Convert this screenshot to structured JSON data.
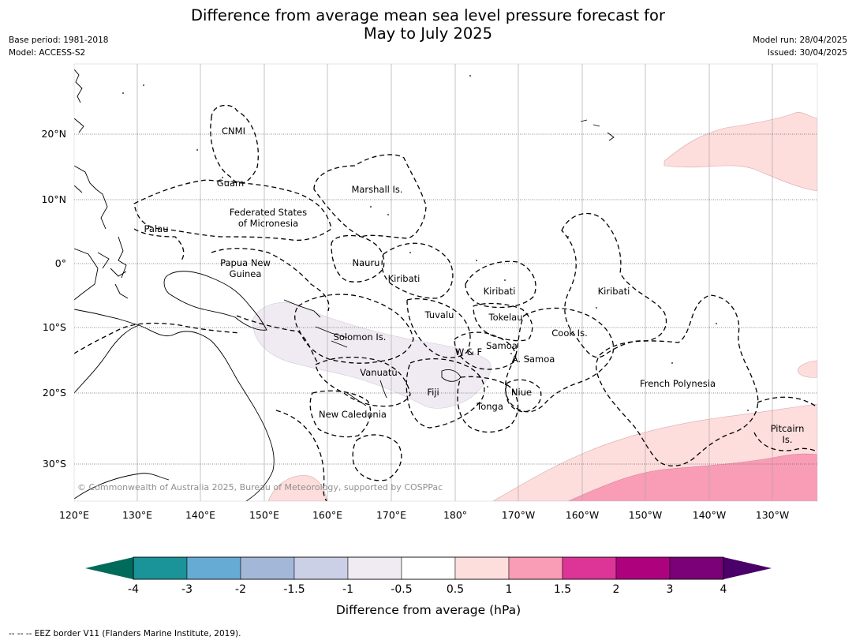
{
  "header": {
    "title_line1": "Difference from average mean sea level pressure forecast for",
    "title_line2": "May to July 2025",
    "base_period": "Base period: 1981-2018",
    "model": "Model: ACCESS-S2",
    "model_run": "Model run: 28/04/2025",
    "issued": "Issued: 30/04/2025"
  },
  "map": {
    "lon_ticks": [
      "120°E",
      "130°E",
      "140°E",
      "150°E",
      "160°E",
      "170°E",
      "180°",
      "170°W",
      "160°W",
      "150°W",
      "140°W",
      "130°W"
    ],
    "lat_ticks": [
      "20°N",
      "10°N",
      "0°",
      "10°S",
      "20°S",
      "30°S"
    ],
    "copyright": "© Commonwealth of Australia 2025, Bureau of Meteorology, supported by COSPPac",
    "regions": [
      {
        "id": "cnmi",
        "lines": [
          "CNMI"
        ]
      },
      {
        "id": "guam",
        "lines": [
          "Guam"
        ]
      },
      {
        "id": "marshall",
        "lines": [
          "Marshall Is."
        ]
      },
      {
        "id": "fsm",
        "lines": [
          "Federated States",
          "of Micronesia"
        ]
      },
      {
        "id": "palau",
        "lines": [
          "Palau"
        ]
      },
      {
        "id": "nauru",
        "lines": [
          "Nauru"
        ]
      },
      {
        "id": "png",
        "lines": [
          "Papua New",
          "Guinea"
        ]
      },
      {
        "id": "kiribati1",
        "lines": [
          "Kiribati"
        ]
      },
      {
        "id": "kiribati2",
        "lines": [
          "Kiribati"
        ]
      },
      {
        "id": "kiribati3",
        "lines": [
          "Kiribati"
        ]
      },
      {
        "id": "tuvalu",
        "lines": [
          "Tuvalu"
        ]
      },
      {
        "id": "tokelau",
        "lines": [
          "Tokelau"
        ]
      },
      {
        "id": "solomon",
        "lines": [
          "Solomon Is."
        ]
      },
      {
        "id": "cook",
        "lines": [
          "Cook Is."
        ]
      },
      {
        "id": "wf",
        "lines": [
          "W & F"
        ]
      },
      {
        "id": "samoa",
        "lines": [
          "Samoa"
        ]
      },
      {
        "id": "asamoa",
        "lines": [
          "A. Samoa"
        ]
      },
      {
        "id": "vanuatu",
        "lines": [
          "Vanuatu"
        ]
      },
      {
        "id": "fiji",
        "lines": [
          "Fiji"
        ]
      },
      {
        "id": "niue",
        "lines": [
          "Niue"
        ]
      },
      {
        "id": "tonga",
        "lines": [
          "Tonga"
        ]
      },
      {
        "id": "frpoly",
        "lines": [
          "French Polynesia"
        ]
      },
      {
        "id": "newcal",
        "lines": [
          "New Caledonia"
        ]
      },
      {
        "id": "pitcairn",
        "lines": [
          "Pitcairn",
          "Is."
        ]
      }
    ]
  },
  "colorbar": {
    "labels": [
      "-4",
      "-3",
      "-2",
      "-1.5",
      "-1",
      "-0.5",
      "0.5",
      "1",
      "1.5",
      "2",
      "3",
      "4"
    ],
    "under_color": "#006b5a",
    "over_color": "#4a0068",
    "colors": [
      "#1a9399",
      "#66abd4",
      "#a3b7d9",
      "#ccd0e6",
      "#f0ebf2",
      "#ffffff",
      "#fedddd",
      "#f99cb5",
      "#dd3497",
      "#ae017e",
      "#7a0177"
    ],
    "title": "Difference from average (hPa)"
  },
  "footer": {
    "legend": "--  --  -- EEZ border V11 (Flanders Marine Institute, 2019)."
  }
}
